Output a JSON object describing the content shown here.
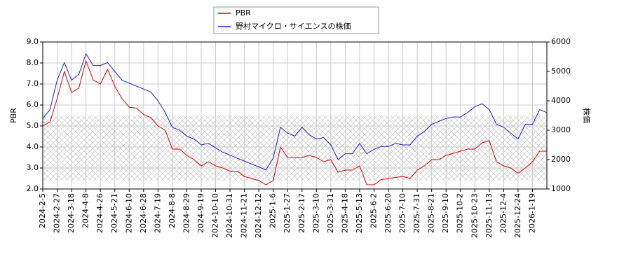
{
  "chart_data": {
    "type": "line",
    "categories": [
      "2024-2-5",
      null,
      "2024-2-27",
      null,
      "2024-3-18",
      null,
      "2024-4-8",
      null,
      "2024-4-26",
      null,
      "2024-5-21",
      null,
      "2024-6-10",
      null,
      "2024-6-28",
      null,
      "2024-7-19",
      null,
      "2024-8-8",
      null,
      "2024-8-29",
      null,
      "2024-9-19",
      null,
      "2024-10-10",
      null,
      "2024-10-31",
      null,
      "2024-11-21",
      null,
      "2024-12-12",
      null,
      "2025-1-6",
      null,
      "2025-1-27",
      null,
      "2025-2-17",
      null,
      "2025-3-10",
      null,
      "2025-3-31",
      null,
      "2025-4-18",
      null,
      "2025-5-13",
      null,
      "2025-6-2",
      null,
      "2025-6-20",
      null,
      "2025-7-10",
      null,
      "2025-7-31",
      null,
      "2025-8-21",
      null,
      "2025-9-10",
      null,
      "2025-10-2",
      null,
      "2025-10-23",
      null,
      "2025-11-13",
      null,
      "2025-12-4",
      null,
      "2025-12-24",
      null,
      "2026-1-19",
      null,
      null
    ],
    "series": [
      {
        "name": "PBR",
        "color": "#dd0000",
        "axis": "y",
        "values": [
          5.0,
          5.2,
          6.3,
          7.6,
          6.6,
          6.8,
          8.1,
          7.2,
          7.0,
          7.7,
          6.9,
          6.3,
          5.9,
          5.85,
          5.55,
          5.4,
          5.0,
          4.8,
          3.9,
          3.9,
          3.6,
          3.4,
          3.1,
          3.3,
          3.1,
          3.0,
          2.85,
          2.85,
          2.6,
          2.5,
          2.4,
          2.2,
          2.4,
          4.0,
          3.5,
          3.5,
          3.5,
          3.6,
          3.5,
          3.3,
          3.4,
          2.8,
          2.9,
          2.9,
          3.1,
          2.2,
          2.2,
          2.45,
          2.5,
          2.55,
          2.6,
          2.5,
          2.9,
          3.1,
          3.4,
          3.4,
          3.6,
          3.7,
          3.8,
          3.9,
          3.9,
          4.2,
          4.3,
          3.3,
          3.1,
          3.0,
          2.75,
          3.0,
          3.3,
          3.8,
          3.8
        ]
      },
      {
        "name": "野村マイクロ・サイエンスの株価",
        "color": "#2222cc",
        "axis": "y2",
        "values": [
          3400,
          3700,
          4700,
          5300,
          4700,
          4900,
          5600,
          5200,
          5200,
          5300,
          5000,
          4700,
          4600,
          4500,
          4400,
          4300,
          4000,
          3600,
          3100,
          3000,
          2800,
          2700,
          2500,
          2550,
          2400,
          2250,
          2150,
          2050,
          1950,
          1850,
          1750,
          1650,
          2050,
          3100,
          2900,
          2800,
          3100,
          2850,
          2700,
          2750,
          2500,
          2000,
          2200,
          2200,
          2550,
          2200,
          2350,
          2450,
          2450,
          2550,
          2500,
          2500,
          2800,
          2950,
          3200,
          3300,
          3400,
          3450,
          3450,
          3600,
          3800,
          3900,
          3700,
          3200,
          3100,
          2900,
          2700,
          3200,
          3200,
          3700,
          3600
        ]
      }
    ],
    "y_label": "PBR",
    "y2_label": "株価",
    "ylim": [
      2,
      9
    ],
    "yticks": [
      {
        "value": 2,
        "label": "2.0"
      },
      {
        "value": 3,
        "label": "3.0"
      },
      {
        "value": 4,
        "label": "4.0"
      },
      {
        "value": 5,
        "label": "5.0"
      },
      {
        "value": 6,
        "label": "6.0"
      },
      {
        "value": 7,
        "label": "7.0"
      },
      {
        "value": 8,
        "label": "8.0"
      },
      {
        "value": 9,
        "label": "9.0"
      }
    ],
    "y2lim": [
      1000,
      6000
    ],
    "y2ticks": [
      1000,
      2000,
      3000,
      4000,
      5000,
      6000
    ],
    "grid": true,
    "legend": "top"
  }
}
